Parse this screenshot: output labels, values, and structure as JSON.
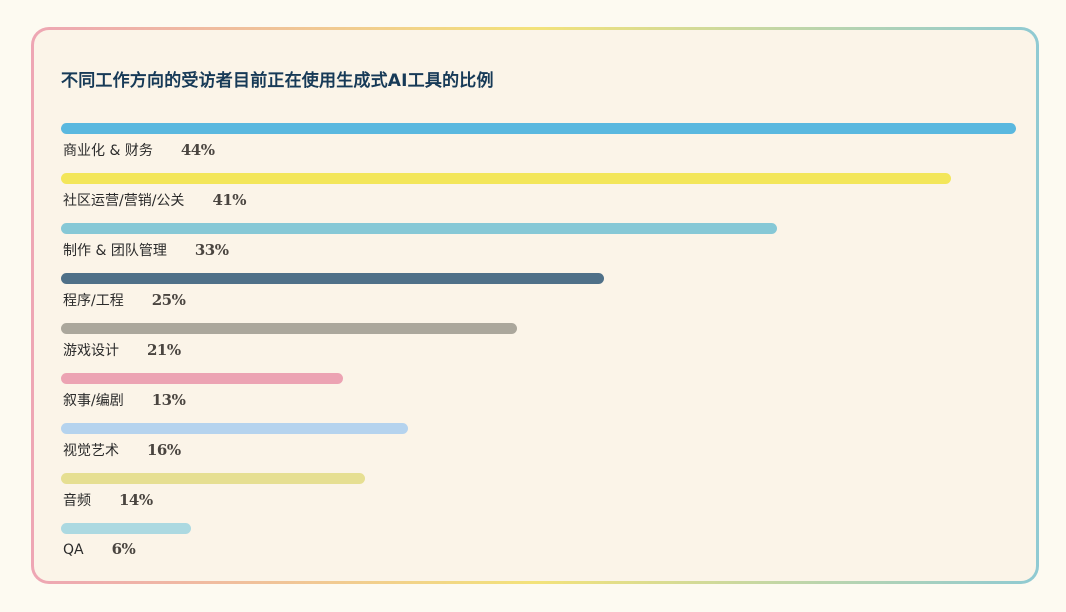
{
  "chart_data": {
    "type": "bar",
    "orientation": "horizontal",
    "title": "不同工作方向的受访者目前正在使用生成式AI工具的比例",
    "unit": "%",
    "xlim": [
      0,
      44
    ],
    "grid": false,
    "categories": [
      "商业化 & 财务",
      "社区运营/营销/公关",
      "制作 & 团队管理",
      "程序/工程",
      "游戏设计",
      "叙事/编剧",
      "视觉艺术",
      "音频",
      "QA"
    ],
    "values": [
      44,
      41,
      33,
      25,
      21,
      13,
      16,
      14,
      6
    ],
    "labels": [
      "44%",
      "41%",
      "33%",
      "25%",
      "21%",
      "13%",
      "16%",
      "14%",
      "6%"
    ],
    "colors": [
      "#5ab8df",
      "#f3e65a",
      "#86c8d6",
      "#4f7088",
      "#aba79c",
      "#eca3b3",
      "#b5d3ee",
      "#e6df92",
      "#acd9e1"
    ]
  }
}
